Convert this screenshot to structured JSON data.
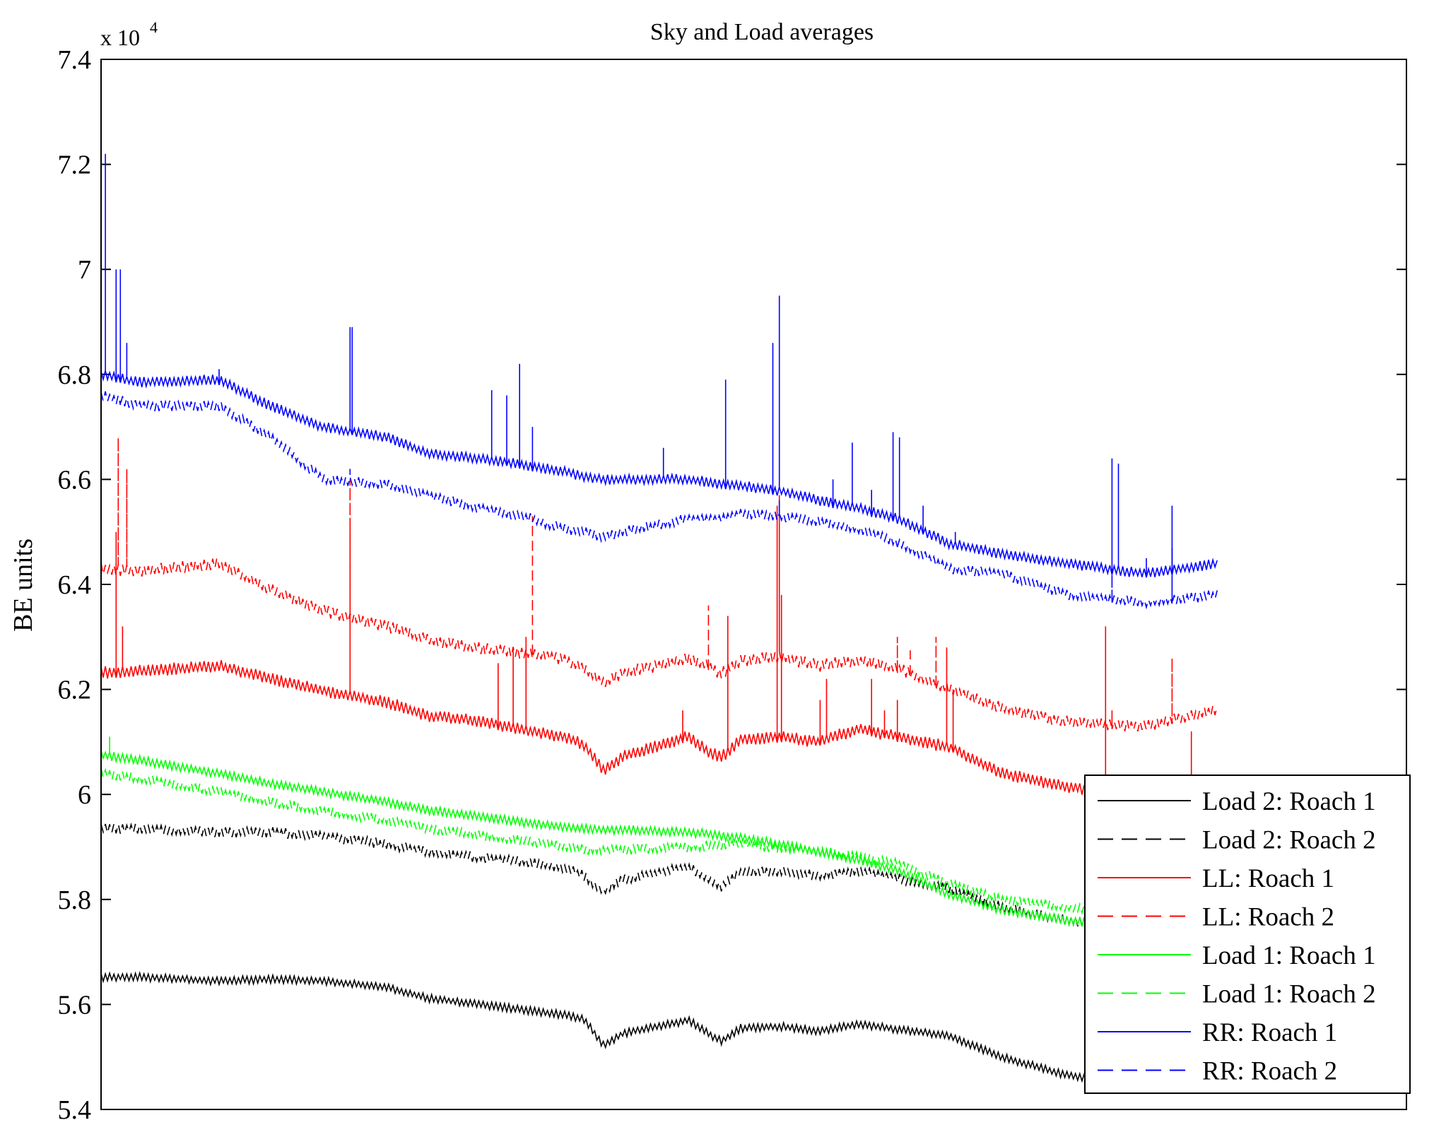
{
  "chart_data": {
    "type": "line",
    "title": "Sky and Load averages",
    "xlabel": "",
    "ylabel": "BE units",
    "y_scale_label": "x 10",
    "y_scale_exponent": "4",
    "ylim": [
      5.4,
      7.4
    ],
    "xlim": [
      0,
      1
    ],
    "x_ticks_shown": false,
    "y_ticks": [
      {
        "value": 5.4,
        "label": "5.4"
      },
      {
        "value": 5.6,
        "label": "5.6"
      },
      {
        "value": 5.8,
        "label": "5.8"
      },
      {
        "value": 6.0,
        "label": "6"
      },
      {
        "value": 6.2,
        "label": "6.2"
      },
      {
        "value": 6.4,
        "label": "6.4"
      },
      {
        "value": 6.6,
        "label": "6.6"
      },
      {
        "value": 6.8,
        "label": "6.8"
      },
      {
        "value": 7.0,
        "label": "7"
      },
      {
        "value": 7.2,
        "label": "7.2"
      },
      {
        "value": 7.4,
        "label": "7.4"
      }
    ],
    "legend_position": "bottom-right",
    "series": [
      {
        "name": "Load 2: Roach 1",
        "color": "#000000",
        "dash": "solid",
        "noise": 0.008,
        "x": [
          0,
          0.03,
          0.09,
          0.13,
          0.17,
          0.22,
          0.25,
          0.29,
          0.33,
          0.355,
          0.37,
          0.385,
          0.4,
          0.45,
          0.465,
          0.475,
          0.49,
          0.52,
          0.55,
          0.58,
          0.61,
          0.65,
          0.69,
          0.74,
          0.8,
          0.855
        ],
        "values": [
          5.652,
          5.652,
          5.645,
          5.648,
          5.645,
          5.632,
          5.612,
          5.6,
          5.588,
          5.58,
          5.572,
          5.522,
          5.545,
          5.57,
          5.545,
          5.53,
          5.555,
          5.558,
          5.55,
          5.562,
          5.553,
          5.54,
          5.5,
          5.465,
          5.45,
          5.438
        ],
        "spikes": []
      },
      {
        "name": "Load 2: Roach 2",
        "color": "#000000",
        "dash": "12,9",
        "noise": 0.01,
        "x": [
          0,
          0.03,
          0.09,
          0.13,
          0.17,
          0.22,
          0.25,
          0.29,
          0.33,
          0.355,
          0.37,
          0.385,
          0.4,
          0.45,
          0.465,
          0.475,
          0.49,
          0.52,
          0.55,
          0.58,
          0.61,
          0.65,
          0.69,
          0.74,
          0.8,
          0.855
        ],
        "values": [
          5.935,
          5.935,
          5.928,
          5.928,
          5.92,
          5.905,
          5.89,
          5.88,
          5.87,
          5.86,
          5.845,
          5.815,
          5.838,
          5.862,
          5.838,
          5.825,
          5.852,
          5.853,
          5.845,
          5.855,
          5.84,
          5.82,
          5.785,
          5.76,
          5.748,
          5.74
        ],
        "spikes": []
      },
      {
        "name": "LL: Roach 1",
        "color": "#ff0000",
        "dash": "solid",
        "noise": 0.012,
        "x": [
          0,
          0.03,
          0.09,
          0.13,
          0.17,
          0.22,
          0.25,
          0.29,
          0.33,
          0.355,
          0.37,
          0.385,
          0.4,
          0.45,
          0.465,
          0.475,
          0.49,
          0.52,
          0.55,
          0.58,
          0.61,
          0.65,
          0.69,
          0.74,
          0.8,
          0.855
        ],
        "values": [
          6.232,
          6.235,
          6.245,
          6.22,
          6.198,
          6.175,
          6.15,
          6.14,
          6.12,
          6.11,
          6.095,
          6.045,
          6.072,
          6.11,
          6.082,
          6.07,
          6.105,
          6.11,
          6.1,
          6.125,
          6.11,
          6.09,
          6.04,
          6.015,
          5.995,
          5.985
        ],
        "spikes": [
          [
            0.011,
            6.5
          ],
          [
            0.016,
            6.32
          ],
          [
            0.19,
            6.52
          ],
          [
            0.305,
            6.25
          ],
          [
            0.315,
            6.28
          ],
          [
            0.325,
            6.3
          ],
          [
            0.445,
            6.16
          ],
          [
            0.48,
            6.34
          ],
          [
            0.518,
            6.55
          ],
          [
            0.522,
            6.38
          ],
          [
            0.55,
            6.18
          ],
          [
            0.555,
            6.22
          ],
          [
            0.59,
            6.22
          ],
          [
            0.6,
            6.16
          ],
          [
            0.61,
            6.18
          ],
          [
            0.648,
            6.28
          ],
          [
            0.652,
            6.2
          ],
          [
            0.77,
            6.32
          ],
          [
            0.835,
            6.12
          ]
        ]
      },
      {
        "name": "LL: Roach 2",
        "color": "#ff0000",
        "dash": "12,9",
        "noise": 0.012,
        "x": [
          0,
          0.03,
          0.09,
          0.13,
          0.17,
          0.22,
          0.25,
          0.29,
          0.33,
          0.355,
          0.37,
          0.385,
          0.4,
          0.45,
          0.465,
          0.475,
          0.49,
          0.52,
          0.55,
          0.58,
          0.61,
          0.65,
          0.69,
          0.74,
          0.8,
          0.855
        ],
        "values": [
          6.43,
          6.425,
          6.44,
          6.39,
          6.35,
          6.32,
          6.295,
          6.278,
          6.268,
          6.258,
          6.24,
          6.21,
          6.232,
          6.258,
          6.245,
          6.23,
          6.255,
          6.262,
          6.245,
          6.255,
          6.24,
          6.2,
          6.165,
          6.138,
          6.13,
          6.16
        ],
        "spikes": [
          [
            0.013,
            6.68
          ],
          [
            0.019,
            6.62
          ],
          [
            0.19,
            6.6
          ],
          [
            0.33,
            6.53
          ],
          [
            0.465,
            6.36
          ],
          [
            0.52,
            6.57
          ],
          [
            0.61,
            6.3
          ],
          [
            0.62,
            6.28
          ],
          [
            0.64,
            6.3
          ],
          [
            0.775,
            6.16
          ],
          [
            0.82,
            6.26
          ]
        ]
      },
      {
        "name": "Load 1: Roach 1",
        "color": "#00ff00",
        "dash": "solid",
        "noise": 0.009,
        "x": [
          0,
          0.03,
          0.09,
          0.13,
          0.17,
          0.22,
          0.25,
          0.29,
          0.33,
          0.355,
          0.37,
          0.385,
          0.4,
          0.45,
          0.465,
          0.475,
          0.49,
          0.52,
          0.55,
          0.58,
          0.61,
          0.65,
          0.69,
          0.74,
          0.8,
          0.855
        ],
        "values": [
          6.075,
          6.065,
          6.04,
          6.02,
          6.005,
          5.985,
          5.97,
          5.958,
          5.945,
          5.938,
          5.935,
          5.933,
          5.933,
          5.928,
          5.925,
          5.92,
          5.917,
          5.905,
          5.89,
          5.875,
          5.855,
          5.81,
          5.78,
          5.76,
          5.745,
          5.735
        ],
        "spikes": [
          [
            0.006,
            6.11
          ]
        ]
      },
      {
        "name": "Load 1: Roach 2",
        "color": "#00ff00",
        "dash": "12,9",
        "noise": 0.01,
        "x": [
          0,
          0.03,
          0.09,
          0.13,
          0.17,
          0.22,
          0.25,
          0.29,
          0.33,
          0.355,
          0.37,
          0.385,
          0.4,
          0.45,
          0.465,
          0.475,
          0.49,
          0.52,
          0.55,
          0.58,
          0.61,
          0.65,
          0.69,
          0.74,
          0.8,
          0.855
        ],
        "values": [
          6.04,
          6.03,
          6.005,
          5.985,
          5.968,
          5.95,
          5.935,
          5.922,
          5.91,
          5.9,
          5.895,
          5.893,
          5.895,
          5.9,
          5.902,
          5.904,
          5.905,
          5.898,
          5.892,
          5.882,
          5.868,
          5.83,
          5.8,
          5.785,
          5.77,
          5.76
        ],
        "spikes": []
      },
      {
        "name": "RR: Roach 1",
        "color": "#0000ff",
        "dash": "solid",
        "noise": 0.01,
        "x": [
          0,
          0.03,
          0.09,
          0.13,
          0.17,
          0.22,
          0.25,
          0.29,
          0.33,
          0.355,
          0.37,
          0.385,
          0.4,
          0.45,
          0.465,
          0.475,
          0.49,
          0.52,
          0.55,
          0.58,
          0.61,
          0.65,
          0.69,
          0.74,
          0.8,
          0.855
        ],
        "values": [
          6.8,
          6.785,
          6.79,
          6.74,
          6.7,
          6.68,
          6.65,
          6.64,
          6.625,
          6.615,
          6.605,
          6.6,
          6.6,
          6.6,
          6.595,
          6.59,
          6.588,
          6.578,
          6.56,
          6.545,
          6.525,
          6.478,
          6.458,
          6.44,
          6.42,
          6.44
        ],
        "spikes": [
          [
            0.003,
            7.22
          ],
          [
            0.011,
            7.0
          ],
          [
            0.015,
            7.0
          ],
          [
            0.019,
            6.86
          ],
          [
            0.09,
            6.81
          ],
          [
            0.19,
            6.89
          ],
          [
            0.192,
            6.89
          ],
          [
            0.3,
            6.77
          ],
          [
            0.31,
            6.76
          ],
          [
            0.32,
            6.82
          ],
          [
            0.33,
            6.7
          ],
          [
            0.43,
            6.66
          ],
          [
            0.478,
            6.79
          ],
          [
            0.515,
            6.86
          ],
          [
            0.52,
            6.95
          ],
          [
            0.56,
            6.6
          ],
          [
            0.575,
            6.67
          ],
          [
            0.59,
            6.58
          ],
          [
            0.607,
            6.69
          ],
          [
            0.612,
            6.68
          ],
          [
            0.63,
            6.55
          ],
          [
            0.655,
            6.5
          ],
          [
            0.775,
            6.64
          ],
          [
            0.78,
            6.63
          ],
          [
            0.8,
            6.45
          ],
          [
            0.82,
            6.55
          ]
        ]
      },
      {
        "name": "RR: Roach 2",
        "color": "#0000ff",
        "dash": "12,9",
        "noise": 0.01,
        "x": [
          0,
          0.03,
          0.09,
          0.13,
          0.17,
          0.22,
          0.25,
          0.29,
          0.33,
          0.355,
          0.37,
          0.385,
          0.4,
          0.45,
          0.465,
          0.475,
          0.49,
          0.52,
          0.55,
          0.58,
          0.61,
          0.65,
          0.69,
          0.74,
          0.8,
          0.855
        ],
        "values": [
          6.76,
          6.74,
          6.74,
          6.68,
          6.6,
          6.59,
          6.57,
          6.545,
          6.525,
          6.505,
          6.5,
          6.49,
          6.5,
          6.525,
          6.525,
          6.525,
          6.535,
          6.53,
          6.52,
          6.505,
          6.48,
          6.43,
          6.42,
          6.38,
          6.365,
          6.38
        ],
        "spikes": [
          [
            0.015,
            6.75
          ],
          [
            0.19,
            6.62
          ],
          [
            0.33,
            6.52
          ],
          [
            0.43,
            6.52
          ],
          [
            0.52,
            6.56
          ],
          [
            0.61,
            6.48
          ],
          [
            0.775,
            6.42
          ],
          [
            0.82,
            6.47
          ]
        ]
      }
    ]
  }
}
